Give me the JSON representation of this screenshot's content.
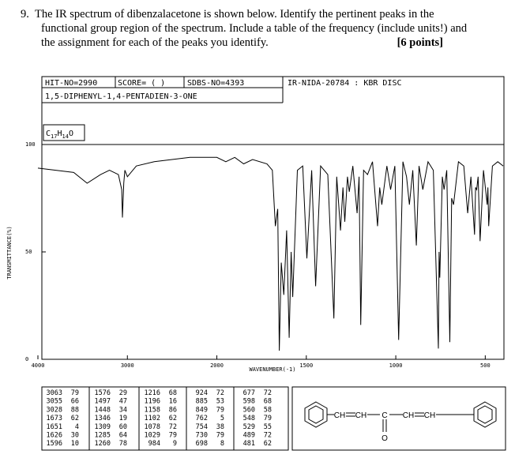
{
  "question": {
    "number": "9.",
    "lines": [
      "The IR spectrum of dibenzalacetone is shown below. Identify the pertinent peaks in the",
      "functional group region of the spectrum. Include a table of the frequency (include units!) and",
      "the assignment for each of the peaks you identify."
    ],
    "points": "[6 points]"
  },
  "spectrum_header": {
    "hit_no": "HIT-NO=2990",
    "score": "SCORE= (   )",
    "sdbs_no": "SDBS-NO=4393",
    "ir_nida": "IR-NIDA-20784 : KBR DISC",
    "compound": "1,5-DIPHENYL-1,4-PENTADIEN-3-ONE",
    "formula": [
      "C",
      "17",
      "H",
      "14",
      "O"
    ]
  },
  "chart_data": {
    "type": "line",
    "y_label": "TRANSMITTANCE(%)",
    "x_label": "WAVENUMBER(-1)",
    "xlim": [
      4000,
      400
    ],
    "x_scale_break": 2000,
    "xticks": [
      4000,
      3000,
      2000,
      1500,
      1000,
      500
    ],
    "ylim": [
      0,
      100
    ],
    "yticks": [
      0,
      50,
      100
    ],
    "color": "#000000",
    "x": [
      4000,
      3800,
      3600,
      3450,
      3300,
      3200,
      3100,
      3063,
      3055,
      3040,
      3028,
      3000,
      2900,
      2700,
      2500,
      2300,
      2100,
      2000,
      1950,
      1900,
      1850,
      1800,
      1720,
      1690,
      1673,
      1660,
      1651,
      1640,
      1626,
      1610,
      1596,
      1585,
      1576,
      1550,
      1520,
      1497,
      1470,
      1448,
      1420,
      1380,
      1346,
      1330,
      1309,
      1295,
      1285,
      1270,
      1260,
      1240,
      1216,
      1205,
      1196,
      1180,
      1158,
      1130,
      1102,
      1090,
      1078,
      1050,
      1029,
      1005,
      984,
      960,
      940,
      924,
      905,
      885,
      870,
      849,
      820,
      790,
      762,
      758,
      754,
      740,
      730,
      715,
      698,
      688,
      677,
      650,
      620,
      598,
      580,
      560,
      554,
      548,
      540,
      529,
      510,
      489,
      485,
      481,
      460,
      430,
      400
    ],
    "values": [
      89,
      88,
      87,
      82,
      86,
      88,
      86,
      79,
      66,
      82,
      88,
      85,
      90,
      92,
      93,
      94,
      94,
      94,
      92,
      94,
      91,
      93,
      91,
      88,
      62,
      70,
      4,
      45,
      30,
      60,
      10,
      50,
      29,
      88,
      90,
      47,
      88,
      34,
      90,
      86,
      19,
      85,
      60,
      80,
      64,
      85,
      78,
      90,
      68,
      85,
      16,
      88,
      86,
      92,
      62,
      80,
      72,
      90,
      79,
      90,
      9,
      92,
      85,
      72,
      88,
      53,
      90,
      79,
      92,
      88,
      5,
      50,
      38,
      85,
      79,
      88,
      8,
      75,
      72,
      92,
      90,
      68,
      85,
      58,
      80,
      79,
      85,
      55,
      88,
      72,
      80,
      62,
      90,
      92,
      90
    ]
  },
  "peak_table": {
    "columns": [
      [
        [
          3063,
          79
        ],
        [
          3055,
          66
        ],
        [
          3028,
          88
        ],
        [
          1673,
          62
        ],
        [
          1651,
          4
        ],
        [
          1626,
          30
        ],
        [
          1596,
          10
        ]
      ],
      [
        [
          1576,
          29
        ],
        [
          1497,
          47
        ],
        [
          1448,
          34
        ],
        [
          1346,
          19
        ],
        [
          1309,
          60
        ],
        [
          1285,
          64
        ],
        [
          1260,
          78
        ]
      ],
      [
        [
          1216,
          68
        ],
        [
          1196,
          16
        ],
        [
          1158,
          86
        ],
        [
          1102,
          62
        ],
        [
          1078,
          72
        ],
        [
          1029,
          79
        ],
        [
          984,
          9
        ]
      ],
      [
        [
          924,
          72
        ],
        [
          885,
          53
        ],
        [
          849,
          79
        ],
        [
          762,
          5
        ],
        [
          754,
          38
        ],
        [
          730,
          79
        ],
        [
          698,
          8
        ]
      ],
      [
        [
          677,
          72
        ],
        [
          598,
          68
        ],
        [
          560,
          58
        ],
        [
          548,
          79
        ],
        [
          529,
          55
        ],
        [
          489,
          72
        ],
        [
          481,
          62
        ]
      ]
    ]
  },
  "structure": {
    "labels": [
      "CH",
      "CH",
      "C",
      "CH",
      "CH",
      "O"
    ]
  }
}
